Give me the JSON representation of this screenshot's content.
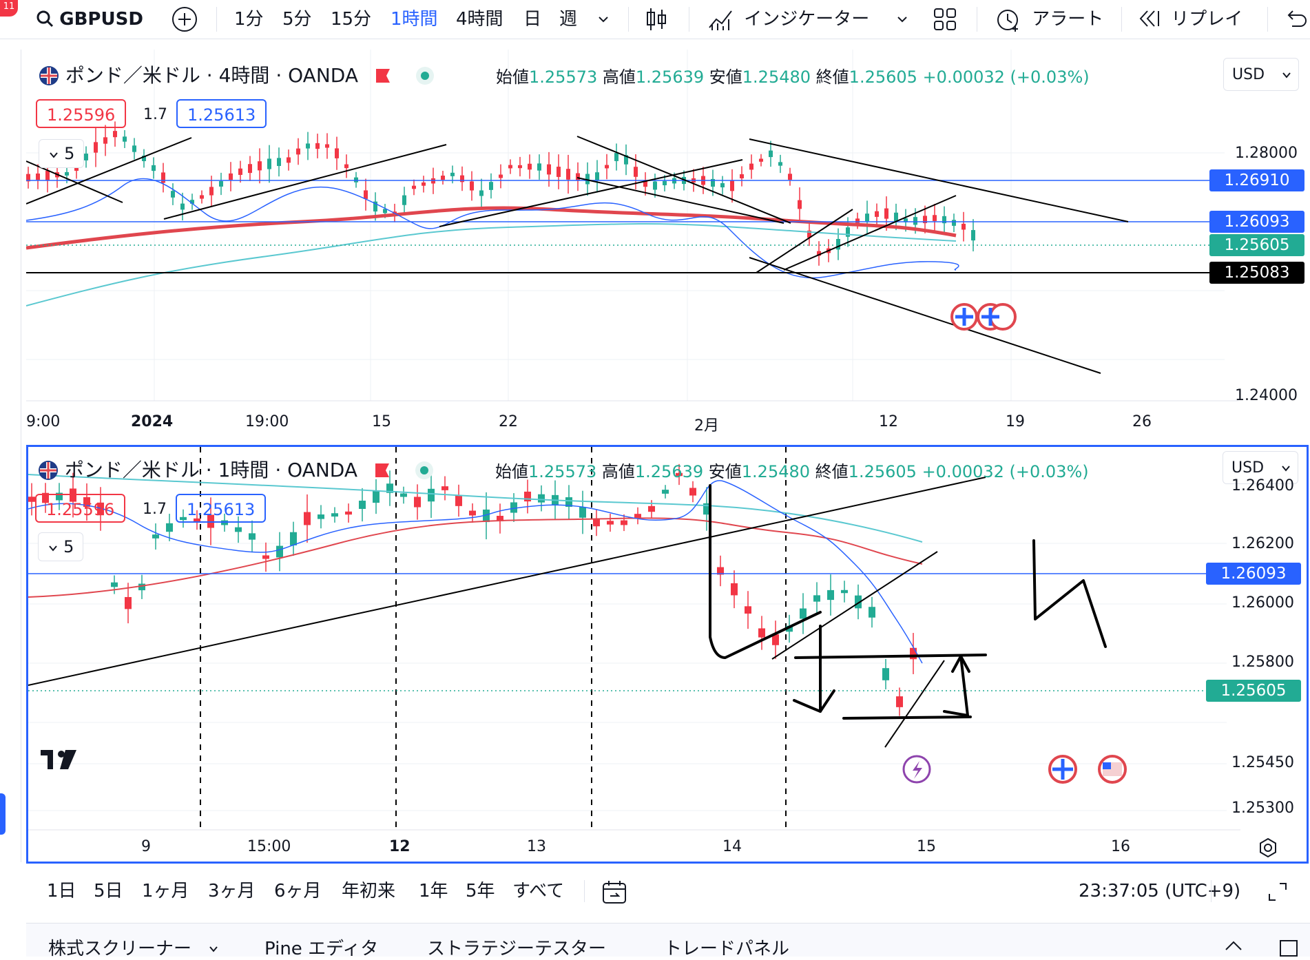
{
  "toolbar": {
    "notification_count": "11",
    "symbol": "GBPUSD",
    "intervals": [
      "1分",
      "5分",
      "15分",
      "1時間",
      "4時間",
      "日",
      "週"
    ],
    "indicators_label": "インジケーター",
    "alert_label": "アラート",
    "replay_label": "リプレイ"
  },
  "pane_top": {
    "title": "ポンド／米ドル · 4時間 · OANDA",
    "ohlc": {
      "open_label": "始値",
      "open": "1.25573",
      "high_label": "高値",
      "high": "1.25639",
      "low_label": "安値",
      "low": "1.25480",
      "close_label": "終値",
      "close": "1.25605",
      "change": "+0.00032 (+0.03%)"
    },
    "sell_price": "1.25596",
    "spread": "1.7",
    "buy_price": "1.25613",
    "collapse_count": "5",
    "currency": "USD",
    "y_ticks": [
      "1.28000",
      "1.24000"
    ],
    "price_labels": [
      {
        "value": "1.26910",
        "color": "#2962ff"
      },
      {
        "value": "1.26093",
        "color": "#2962ff"
      },
      {
        "value": "1.25605",
        "color": "#22ab94"
      },
      {
        "value": "1.25083",
        "color": "#000000"
      }
    ],
    "x_ticks": [
      "9:00",
      "2024",
      "19:00",
      "15",
      "22",
      "2月",
      "12",
      "19",
      "26"
    ]
  },
  "pane_bottom": {
    "title": "ポンド／米ドル · 1時間 · OANDA",
    "ohlc": {
      "open_label": "始値",
      "open": "1.25573",
      "high_label": "高値",
      "high": "1.25639",
      "low_label": "安値",
      "low": "1.25480",
      "close_label": "終値",
      "close": "1.25605",
      "change": "+0.00032 (+0.03%)"
    },
    "sell_price": "1.25596",
    "spread": "1.7",
    "buy_price": "1.25613",
    "collapse_count": "5",
    "currency": "USD",
    "y_ticks": [
      "1.26400",
      "1.26200",
      "1.26000",
      "1.25800",
      "1.25450",
      "1.25300"
    ],
    "price_labels": [
      {
        "value": "1.26093",
        "color": "#2962ff"
      },
      {
        "value": "1.25605",
        "color": "#22ab94"
      }
    ],
    "x_ticks": [
      "9",
      "15:00",
      "12",
      "13",
      "14",
      "15",
      "16"
    ]
  },
  "bottom_bar": {
    "ranges": [
      "1日",
      "5日",
      "1ヶ月",
      "3ヶ月",
      "6ヶ月",
      "年初来",
      "1年",
      "5年",
      "すべて"
    ],
    "clock": "23:37:05 (UTC+9)"
  },
  "panel_tabs": [
    "株式スクリーナー",
    "Pine エディタ",
    "ストラテジーテスター",
    "トレードパネル"
  ],
  "colors": {
    "accent": "#2962ff",
    "up": "#22ab94",
    "down": "#f23645",
    "ma_red": "#e0464e",
    "ma_cyan": "#5ac8d0"
  },
  "icons": [
    "search-icon",
    "plus-icon",
    "chevron-down-icon",
    "candles-icon",
    "indicators-icon",
    "layout-icon",
    "alarm-icon",
    "replay-icon",
    "flag-icon",
    "dot-icon",
    "uk-flag-icon",
    "us-flag-icon",
    "lightning-icon",
    "tradingview-logo-icon",
    "settings-icon",
    "calendar-icon",
    "fullscreen-icon"
  ]
}
